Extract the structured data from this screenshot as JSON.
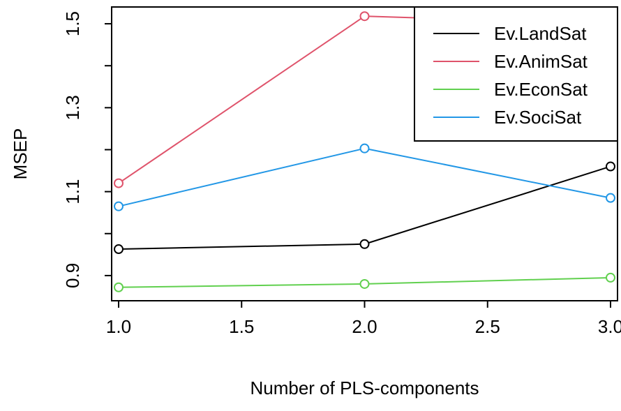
{
  "chart_data": {
    "type": "line",
    "title": "",
    "xlabel": "Number of PLS-components",
    "ylabel": "MSEP",
    "x": [
      1,
      2,
      3
    ],
    "xlim": [
      1,
      3
    ],
    "ylim": [
      0.84,
      1.54
    ],
    "x_ticks": [
      "1.0",
      "1.5",
      "2.0",
      "2.5",
      "3.0"
    ],
    "y_ticks": [
      "0.9",
      "1.1",
      "1.3",
      "1.5"
    ],
    "y_minor_ticks": [
      1.0,
      1.2,
      1.4
    ],
    "grid": false,
    "markers": "open-circle",
    "legend_position": "top-right",
    "series": [
      {
        "name": "Ev.LandSat",
        "color": "#000000",
        "values": [
          0.963,
          0.975,
          1.16
        ]
      },
      {
        "name": "Ev.AnimSat",
        "color": "#DF536B",
        "values": [
          1.12,
          1.518,
          1.5
        ]
      },
      {
        "name": "Ev.EconSat",
        "color": "#61D04F",
        "values": [
          0.872,
          0.88,
          0.895
        ]
      },
      {
        "name": "Ev.SociSat",
        "color": "#2297E6",
        "values": [
          1.065,
          1.203,
          1.085
        ]
      }
    ]
  }
}
